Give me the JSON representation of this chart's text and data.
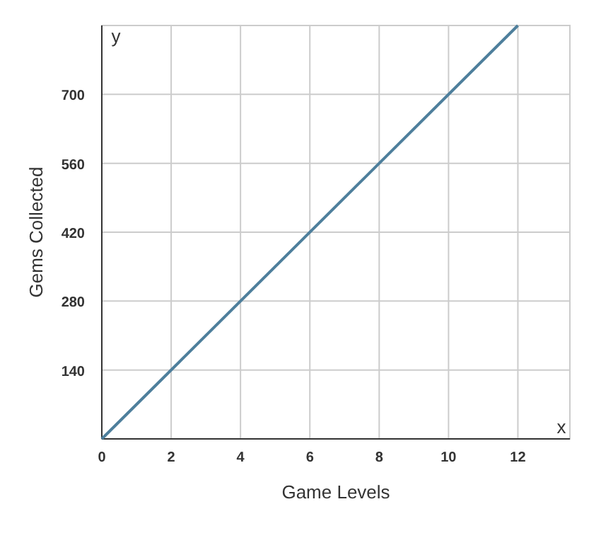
{
  "chart_data": {
    "type": "line",
    "xlabel": "Game Levels",
    "ylabel": "Gems Collected",
    "annotations": [
      "x",
      "y"
    ],
    "x": [
      0,
      12
    ],
    "series": [
      {
        "color": "#4e7f9c",
        "values": [
          0,
          840
        ]
      }
    ],
    "xlim": [
      0,
      13.5
    ],
    "xticks": [
      0,
      2,
      4,
      6,
      8,
      10,
      12
    ],
    "ylim": [
      0,
      840
    ],
    "yticks": [
      {
        "value": 0,
        "label": null
      },
      140,
      280,
      420,
      560,
      700,
      {
        "value": 840,
        "label": null
      }
    ],
    "grid": true,
    "marker": "none",
    "line_style": "solid"
  }
}
